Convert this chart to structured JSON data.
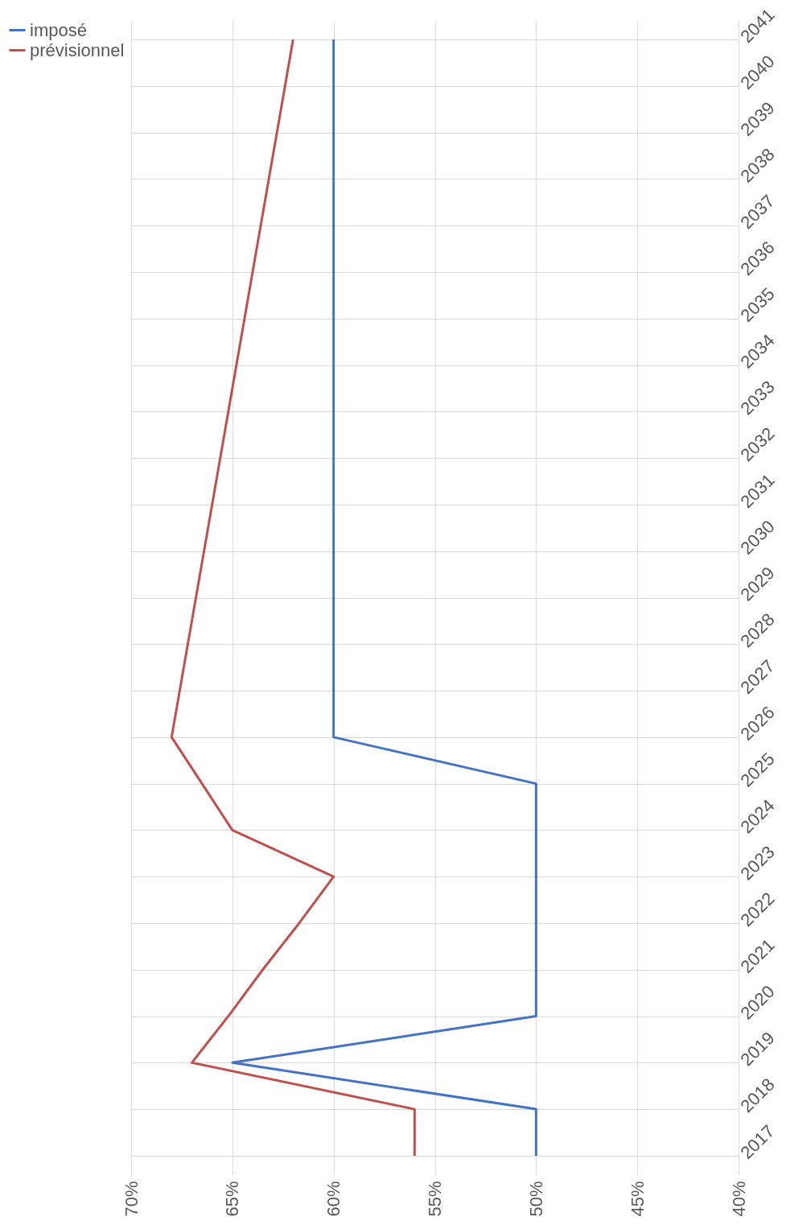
{
  "chart_data": {
    "type": "line",
    "orientation": "horizontal",
    "categories": [
      "2041",
      "2040",
      "2039",
      "2038",
      "2037",
      "2036",
      "2035",
      "2034",
      "2033",
      "2032",
      "2031",
      "2030",
      "2029",
      "2028",
      "2027",
      "2026",
      "2025",
      "2024",
      "2023",
      "2022",
      "2021",
      "2020",
      "2019",
      "2018",
      "2017"
    ],
    "series": [
      {
        "name": "imposé",
        "color": "#4472c4",
        "values": [
          60,
          60,
          60,
          60,
          60,
          60,
          60,
          60,
          60,
          60,
          60,
          60,
          60,
          60,
          60,
          60,
          50,
          50,
          50,
          50,
          50,
          50,
          65,
          50,
          50
        ]
      },
      {
        "name": "prévisionnel",
        "color": "#c0504d",
        "values": [
          62,
          62.4,
          62.8,
          63.2,
          63.6,
          64,
          64.4,
          64.8,
          65.2,
          65.6,
          66,
          66.4,
          66.8,
          67.2,
          67.6,
          68,
          66.5,
          65,
          60,
          61.7,
          63.5,
          65.2,
          67,
          56,
          56
        ]
      }
    ],
    "xlim": [
      70,
      40
    ],
    "xticks": [
      {
        "value": 70,
        "label": "70%"
      },
      {
        "value": 65,
        "label": "65%"
      },
      {
        "value": 60,
        "label": "60%"
      },
      {
        "value": 55,
        "label": "55%"
      },
      {
        "value": 50,
        "label": "50%"
      },
      {
        "value": 45,
        "label": "45%"
      },
      {
        "value": 40,
        "label": "40%"
      }
    ],
    "grid": true,
    "legend": "left",
    "marker": "none",
    "line_style": "solid"
  }
}
